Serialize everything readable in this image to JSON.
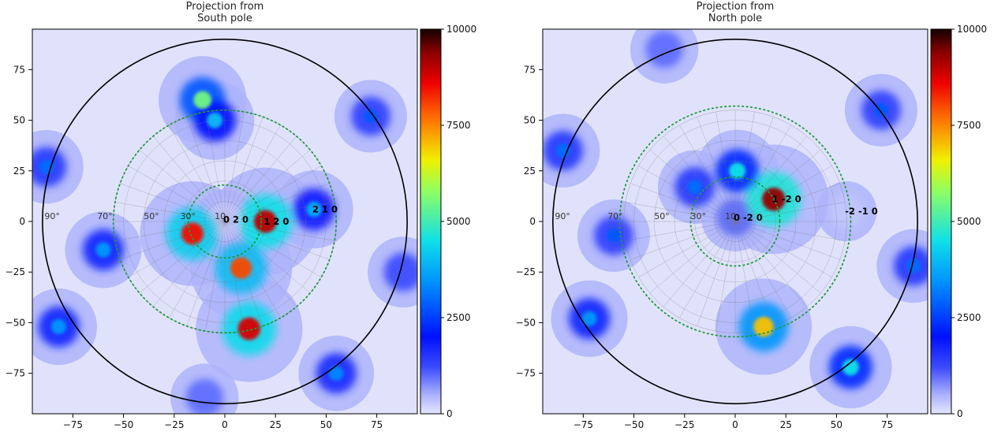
{
  "chart_data": [
    {
      "type": "heatmap",
      "title": "Projection from\nSouth pole",
      "x_ticks": [
        -75,
        -50,
        -25,
        0,
        25,
        50,
        75
      ],
      "y_ticks": [
        75,
        50,
        25,
        0,
        -25,
        -50,
        -75
      ],
      "xlim": [
        -95,
        95
      ],
      "ylim": [
        -95,
        95
      ],
      "colorbar": {
        "range": [
          0,
          10000
        ],
        "ticks": [
          0,
          2500,
          5000,
          7500,
          10000
        ]
      },
      "angle_labels": [
        "90°",
        "70°",
        "50°",
        "30°",
        "10"
      ],
      "angle_label_x": [
        -89,
        -63,
        -40,
        -22,
        -5
      ],
      "dotted_circle_radii": [
        18,
        55
      ],
      "peaks": [
        {
          "label": "0 2 0",
          "x": 0,
          "y": 1,
          "value": 500
        },
        {
          "label": "1 2 0",
          "x": 20,
          "y": 0,
          "value": 9000
        },
        {
          "label": "2 1 0",
          "x": 44,
          "y": 6,
          "value": 3800
        },
        {
          "label": "",
          "x": -16,
          "y": -6,
          "value": 8500
        },
        {
          "label": "",
          "x": 8,
          "y": -23,
          "value": 8000
        },
        {
          "label": "",
          "x": 12,
          "y": -53,
          "value": 8800
        },
        {
          "label": "",
          "x": -11,
          "y": 60,
          "value": 5500
        },
        {
          "label": "",
          "x": -5,
          "y": 50,
          "value": 4000
        },
        {
          "label": "",
          "x": -60,
          "y": -14,
          "value": 3500
        },
        {
          "label": "",
          "x": -88,
          "y": 27,
          "value": 3000
        },
        {
          "label": "",
          "x": -82,
          "y": -52,
          "value": 3500
        },
        {
          "label": "",
          "x": 72,
          "y": 52,
          "value": 2800
        },
        {
          "label": "",
          "x": 88,
          "y": -25,
          "value": 2500
        },
        {
          "label": "",
          "x": 55,
          "y": -75,
          "value": 3300
        },
        {
          "label": "",
          "x": -10,
          "y": -87,
          "value": 2000
        }
      ]
    },
    {
      "type": "heatmap",
      "title": "Projection from\nNorth pole",
      "x_ticks": [
        -75,
        -50,
        -25,
        0,
        25,
        50,
        75
      ],
      "y_ticks": [
        75,
        50,
        25,
        0,
        -25,
        -50,
        -75
      ],
      "xlim": [
        -95,
        95
      ],
      "ylim": [
        -95,
        95
      ],
      "colorbar": {
        "range": [
          0,
          10000
        ],
        "ticks": [
          0,
          2500,
          5000,
          7500,
          10000
        ]
      },
      "angle_labels": [
        "90°",
        "70°",
        "50°",
        "30°",
        "10"
      ],
      "angle_label_x": [
        -89,
        -63,
        -40,
        -22,
        -5
      ],
      "dotted_circle_radii": [
        22,
        57
      ],
      "peaks": [
        {
          "label": "0 -2 0",
          "x": 0,
          "y": 2,
          "value": 2000
        },
        {
          "label": "1 -2 0",
          "x": 19,
          "y": 11,
          "value": 9300
        },
        {
          "label": "-2 -1 0",
          "x": 55,
          "y": 5,
          "value": 600
        },
        {
          "label": "",
          "x": 1,
          "y": 25,
          "value": 4500
        },
        {
          "label": "",
          "x": -20,
          "y": 17,
          "value": 3000
        },
        {
          "label": "",
          "x": 14,
          "y": -52,
          "value": 7000
        },
        {
          "label": "",
          "x": -60,
          "y": -7,
          "value": 2800
        },
        {
          "label": "",
          "x": -85,
          "y": 35,
          "value": 3000
        },
        {
          "label": "",
          "x": -72,
          "y": -48,
          "value": 3500
        },
        {
          "label": "",
          "x": 72,
          "y": 55,
          "value": 2800
        },
        {
          "label": "",
          "x": 88,
          "y": -22,
          "value": 3000
        },
        {
          "label": "",
          "x": 57,
          "y": -72,
          "value": 4500
        },
        {
          "label": "",
          "x": -35,
          "y": 85,
          "value": 2000
        }
      ]
    }
  ]
}
